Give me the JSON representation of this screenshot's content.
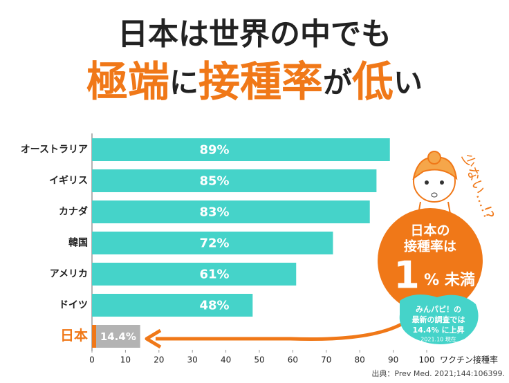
{
  "title_line1": "日本は世界の中でも",
  "title_line2": [
    {
      "text": "極端",
      "color": "#f07818",
      "size": 60
    },
    {
      "text": "に",
      "color": "#222222",
      "size": 42
    },
    {
      "text": "接種率",
      "color": "#f07818",
      "size": 60
    },
    {
      "text": "が",
      "color": "#222222",
      "size": 42
    },
    {
      "text": "低",
      "color": "#f07818",
      "size": 60
    },
    {
      "text": "い",
      "color": "#222222",
      "size": 42
    }
  ],
  "chart_data": {
    "type": "bar",
    "orientation": "horizontal",
    "categories": [
      "オーストラリア",
      "イギリス",
      "カナダ",
      "韓国",
      "アメリカ",
      "ドイツ",
      "日本"
    ],
    "values": [
      89,
      85,
      83,
      72,
      61,
      48,
      14.4
    ],
    "value_labels": [
      "89%",
      "85%",
      "83%",
      "72%",
      "61%",
      "48%",
      "14.4%"
    ],
    "colors": [
      "#45d3c9",
      "#45d3c9",
      "#45d3c9",
      "#45d3c9",
      "#45d3c9",
      "#45d3c9",
      "#b3b3b3"
    ],
    "label_colors": [
      "#222222",
      "#222222",
      "#222222",
      "#222222",
      "#222222",
      "#222222",
      "#f07818"
    ],
    "xlim": [
      0,
      100
    ],
    "xticks": [
      0,
      10,
      20,
      30,
      40,
      50,
      60,
      70,
      80,
      90,
      100
    ],
    "x_label": "ワクチン接種率",
    "source": "出典：Prev Med. 2021;144:106399.",
    "bubble": {
      "line1": "日本の",
      "line2": "接種率は",
      "big": "1",
      "suffix": "% 未満"
    },
    "note": {
      "line1": "みんパピ！の",
      "line2": "最新の調査では",
      "line3": "14.4% に上昇",
      "line4": "2021.10 現在"
    },
    "exclamation": "少ない…!?"
  }
}
